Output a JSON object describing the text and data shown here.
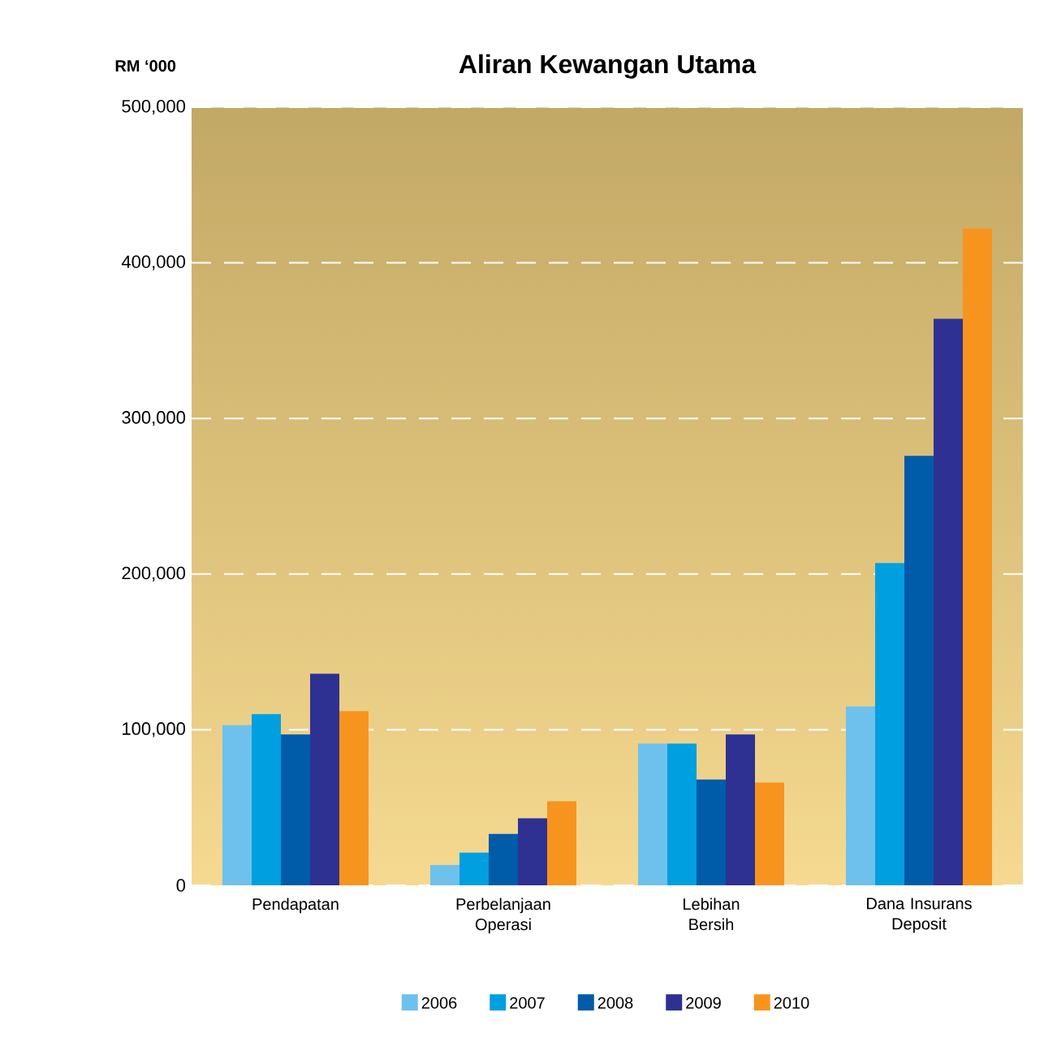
{
  "chart_data": {
    "type": "bar",
    "title": "Aliran Kewangan Utama",
    "ylabel": "RM ‘000",
    "categories": [
      "Pendapatan",
      "Perbelanjaan Operasi",
      "Lebihan Bersih",
      "Dana Insurans Deposit"
    ],
    "series": [
      {
        "name": "2006",
        "color": "#6ec1ec",
        "values": [
          103000,
          13000,
          91000,
          115000
        ]
      },
      {
        "name": "2007",
        "color": "#009fe0",
        "values": [
          110000,
          21000,
          91000,
          207000
        ]
      },
      {
        "name": "2008",
        "color": "#005ba9",
        "values": [
          97000,
          33000,
          68000,
          276000
        ]
      },
      {
        "name": "2009",
        "color": "#2e3192",
        "values": [
          136000,
          43000,
          97000,
          364000
        ]
      },
      {
        "name": "2010",
        "color": "#f7941d",
        "values": [
          112000,
          54000,
          66000,
          422000
        ]
      }
    ],
    "ylim": [
      0,
      500000
    ],
    "yticks": [
      0,
      {
        "value": 100000,
        "label": "100,000"
      },
      {
        "value": 200000,
        "label": "200,000"
      },
      {
        "value": 300000,
        "label": "300,000"
      },
      {
        "value": 400000,
        "label": "400,000"
      },
      {
        "value": 500000,
        "label": "500,000"
      }
    ],
    "grid": "y",
    "legend": "bottom"
  }
}
